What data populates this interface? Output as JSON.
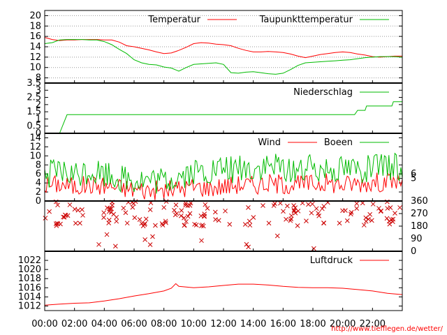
{
  "chart_data": [
    {
      "type": "line",
      "panel": "temperature",
      "ylim": [
        7,
        21
      ],
      "y_ticks": [
        "8",
        "10",
        "12",
        "14",
        "16",
        "18",
        "20"
      ],
      "grid": true,
      "legend_position": "top-right",
      "series": [
        {
          "name": "Temperatur",
          "color": "#ff0000",
          "points": [
            [
              0,
              15.8
            ],
            [
              0.5,
              15.4
            ],
            [
              1,
              15.2
            ],
            [
              1.5,
              15.3
            ],
            [
              2,
              15.3
            ],
            [
              2.5,
              15.4
            ],
            [
              3,
              15.4
            ],
            [
              3.5,
              15.4
            ],
            [
              4,
              15.3
            ],
            [
              4.5,
              15.3
            ],
            [
              5,
              14.9
            ],
            [
              5.5,
              14.2
            ],
            [
              6,
              14.0
            ],
            [
              6.5,
              13.7
            ],
            [
              7,
              13.4
            ],
            [
              7.5,
              13.0
            ],
            [
              8,
              12.7
            ],
            [
              8.5,
              12.8
            ],
            [
              9,
              13.3
            ],
            [
              9.5,
              13.9
            ],
            [
              10,
              14.6
            ],
            [
              10.5,
              14.8
            ],
            [
              11,
              14.7
            ],
            [
              11.5,
              14.5
            ],
            [
              12,
              14.4
            ],
            [
              12.5,
              14.2
            ],
            [
              13,
              13.7
            ],
            [
              13.5,
              13.3
            ],
            [
              14,
              13.0
            ],
            [
              14.5,
              13.0
            ],
            [
              15,
              13.1
            ],
            [
              15.5,
              13.0
            ],
            [
              16,
              12.9
            ],
            [
              16.5,
              12.6
            ],
            [
              17,
              12.2
            ],
            [
              17.5,
              11.9
            ],
            [
              18,
              12.2
            ],
            [
              18.5,
              12.5
            ],
            [
              19,
              12.7
            ],
            [
              19.5,
              12.9
            ],
            [
              20,
              13.0
            ],
            [
              20.5,
              12.9
            ],
            [
              21,
              12.6
            ],
            [
              21.5,
              12.4
            ],
            [
              22,
              12.1
            ],
            [
              22.5,
              12.0
            ],
            [
              23,
              12.1
            ],
            [
              23.5,
              12.2
            ],
            [
              24,
              12.2
            ]
          ]
        },
        {
          "name": "Taupunkttemperatur",
          "color": "#00bb00",
          "points": [
            [
              0,
              14.6
            ],
            [
              0.5,
              14.8
            ],
            [
              1,
              15.3
            ],
            [
              1.5,
              15.4
            ],
            [
              2,
              15.4
            ],
            [
              2.5,
              15.4
            ],
            [
              3,
              15.3
            ],
            [
              3.5,
              15.3
            ],
            [
              4,
              15.0
            ],
            [
              4.5,
              14.4
            ],
            [
              5,
              13.5
            ],
            [
              5.5,
              12.7
            ],
            [
              6,
              11.5
            ],
            [
              6.5,
              10.9
            ],
            [
              7,
              10.6
            ],
            [
              7.5,
              10.5
            ],
            [
              8,
              10.1
            ],
            [
              8.5,
              9.9
            ],
            [
              9,
              9.3
            ],
            [
              9.5,
              10.0
            ],
            [
              10,
              10.6
            ],
            [
              10.5,
              10.7
            ],
            [
              11,
              10.8
            ],
            [
              11.5,
              10.9
            ],
            [
              12,
              10.6
            ],
            [
              12.5,
              9.0
            ],
            [
              13,
              8.9
            ],
            [
              13.5,
              9.1
            ],
            [
              14,
              9.2
            ],
            [
              14.5,
              9.0
            ],
            [
              15,
              8.8
            ],
            [
              15.5,
              8.7
            ],
            [
              16,
              8.9
            ],
            [
              16.5,
              9.6
            ],
            [
              17,
              10.4
            ],
            [
              17.5,
              10.9
            ],
            [
              18,
              11.0
            ],
            [
              18.5,
              11.1
            ],
            [
              19,
              11.2
            ],
            [
              19.5,
              11.3
            ],
            [
              20,
              11.4
            ],
            [
              20.5,
              11.5
            ],
            [
              21,
              11.7
            ],
            [
              21.5,
              11.9
            ],
            [
              22,
              12.0
            ],
            [
              22.5,
              12.1
            ],
            [
              23,
              12.1
            ],
            [
              23.5,
              12.1
            ],
            [
              24,
              12.0
            ]
          ]
        }
      ]
    },
    {
      "type": "line",
      "panel": "precipitation",
      "ylim": [
        0,
        3.5
      ],
      "y_ticks": [
        "0",
        "0.5",
        "1",
        "1.5",
        "2",
        "2.5",
        "3",
        "3.5"
      ],
      "grid": false,
      "legend_position": "top-right",
      "series": [
        {
          "name": "Niederschlag",
          "color": "#00bb00",
          "points": [
            [
              1.0,
              0
            ],
            [
              1.5,
              1.3
            ],
            [
              20.8,
              1.3
            ],
            [
              21.0,
              1.6
            ],
            [
              21.5,
              1.6
            ],
            [
              21.6,
              1.9
            ],
            [
              23.3,
              1.9
            ],
            [
              23.4,
              2.2
            ],
            [
              24,
              2.2
            ]
          ]
        }
      ]
    },
    {
      "type": "line",
      "panel": "wind",
      "ylim": [
        0,
        15
      ],
      "y_ticks": [
        "0",
        "2",
        "4",
        "6",
        "8",
        "10",
        "12",
        "14"
      ],
      "y2_ticks": [
        "5",
        "6"
      ],
      "grid": false,
      "legend_position": "top-right",
      "series": [
        {
          "name": "Wind",
          "color": "#ff0000",
          "points": [
            [
              0,
              3.5
            ],
            [
              1,
              3.8
            ],
            [
              2,
              3.2
            ],
            [
              3,
              3.6
            ],
            [
              4,
              3.4
            ],
            [
              5,
              3.0
            ],
            [
              6,
              2.6
            ],
            [
              7,
              2.4
            ],
            [
              8,
              2.3
            ],
            [
              9,
              2.8
            ],
            [
              10,
              3.2
            ],
            [
              11,
              3.0
            ],
            [
              12,
              3.3
            ],
            [
              13,
              3.7
            ],
            [
              14,
              3.6
            ],
            [
              15,
              3.9
            ],
            [
              16,
              3.8
            ],
            [
              17,
              3.6
            ],
            [
              18,
              3.9
            ],
            [
              19,
              4.1
            ],
            [
              20,
              3.6
            ],
            [
              21,
              4.0
            ],
            [
              22,
              4.1
            ],
            [
              23,
              4.3
            ],
            [
              24,
              4.4
            ]
          ]
        },
        {
          "name": "Boeen",
          "color": "#00bb00",
          "points": [
            [
              0,
              5.8
            ],
            [
              1,
              6.2
            ],
            [
              2,
              5.5
            ],
            [
              3,
              6.6
            ],
            [
              4,
              6.0
            ],
            [
              5,
              5.3
            ],
            [
              6,
              4.6
            ],
            [
              7,
              4.3
            ],
            [
              8,
              4.1
            ],
            [
              9,
              5.4
            ],
            [
              10,
              6.2
            ],
            [
              11,
              6.3
            ],
            [
              12,
              6.9
            ],
            [
              13,
              7.2
            ],
            [
              14,
              7.0
            ],
            [
              15,
              7.4
            ],
            [
              16,
              7.2
            ],
            [
              17,
              7.0
            ],
            [
              18,
              7.1
            ],
            [
              19,
              7.6
            ],
            [
              20,
              7.4
            ],
            [
              21,
              7.3
            ],
            [
              22,
              7.1
            ],
            [
              23,
              7.4
            ],
            [
              24,
              7.6
            ]
          ]
        }
      ]
    },
    {
      "type": "scatter",
      "panel": "wind_direction",
      "ylim": [
        0,
        360
      ],
      "y2_ticks": [
        "0",
        "90",
        "180",
        "270",
        "360"
      ],
      "grid": false,
      "series": [
        {
          "name": "",
          "color": "#cc0000",
          "dominant_range": [
            180,
            360
          ]
        }
      ]
    },
    {
      "type": "line",
      "panel": "pressure",
      "ylim": [
        1011,
        1024
      ],
      "y_ticks": [
        "1012",
        "1014",
        "1016",
        "1018",
        "1020",
        "1022"
      ],
      "grid": false,
      "legend_position": "top-right",
      "series": [
        {
          "name": "Luftdruck",
          "color": "#ff0000",
          "points": [
            [
              0,
              1012.2
            ],
            [
              1,
              1012.4
            ],
            [
              2,
              1012.6
            ],
            [
              3,
              1012.7
            ],
            [
              4,
              1013.1
            ],
            [
              5,
              1013.6
            ],
            [
              6,
              1014.2
            ],
            [
              7,
              1014.7
            ],
            [
              8,
              1015.3
            ],
            [
              8.5,
              1015.9
            ],
            [
              8.8,
              1016.9
            ],
            [
              9,
              1016.3
            ],
            [
              10,
              1016.0
            ],
            [
              11,
              1016.2
            ],
            [
              12,
              1016.5
            ],
            [
              13,
              1016.8
            ],
            [
              14,
              1016.8
            ],
            [
              15,
              1016.6
            ],
            [
              16,
              1016.3
            ],
            [
              17,
              1016.1
            ],
            [
              18,
              1016.0
            ],
            [
              19,
              1016.0
            ],
            [
              20,
              1015.9
            ],
            [
              21,
              1015.6
            ],
            [
              22,
              1015.3
            ],
            [
              23,
              1014.8
            ],
            [
              24,
              1014.5
            ]
          ]
        }
      ]
    }
  ],
  "x_axis": {
    "ticks": [
      "00:00",
      "02:00",
      "04:00",
      "06:00",
      "08:00",
      "10:00",
      "12:00",
      "14:00",
      "16:00",
      "18:00",
      "20:00",
      "22:00"
    ]
  },
  "footer": {
    "url": "http://www.tiefflegen.de/wetter/"
  }
}
